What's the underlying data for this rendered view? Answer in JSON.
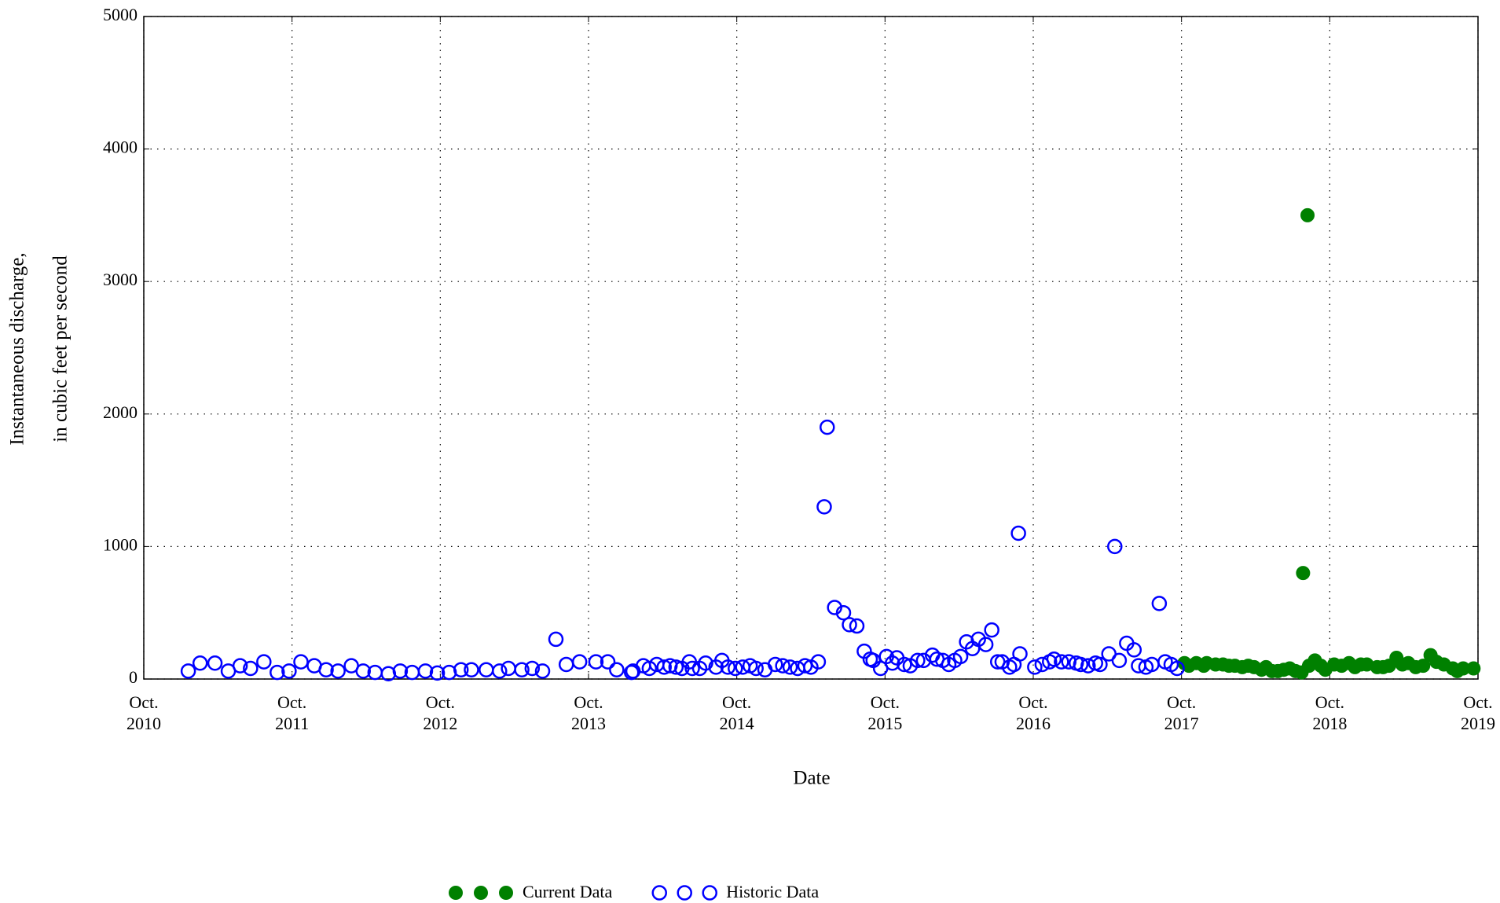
{
  "chart_data": {
    "type": "scatter",
    "x_label": "Date",
    "y_label": [
      "Instantaneous discharge,",
      "in cubic feet per second"
    ],
    "xlim": [
      2010.75,
      2019.75
    ],
    "xticks": [
      {
        "value": 2010.75,
        "label": "Oct. 2010"
      },
      {
        "value": 2011.75,
        "label": "Oct. 2011"
      },
      {
        "value": 2012.75,
        "label": "Oct. 2012"
      },
      {
        "value": 2013.75,
        "label": "Oct. 2013"
      },
      {
        "value": 2014.75,
        "label": "Oct. 2014"
      },
      {
        "value": 2015.75,
        "label": "Oct. 2015"
      },
      {
        "value": 2016.75,
        "label": "Oct. 2016"
      },
      {
        "value": 2017.75,
        "label": "Oct. 2017"
      },
      {
        "value": 2018.75,
        "label": "Oct. 2018"
      },
      {
        "value": 2019.75,
        "label": "Oct. 2019"
      }
    ],
    "ylim": [
      0,
      5000
    ],
    "yticks": [
      0,
      1000,
      2000,
      3000,
      4000,
      5000
    ],
    "grid": true,
    "legend": "bottom",
    "series": [
      {
        "name": "Current Data",
        "color": "#008000",
        "filled": true,
        "x": [
          2017.77,
          2017.8,
          2017.85,
          2017.9,
          2017.92,
          2017.98,
          2018.03,
          2018.07,
          2018.11,
          2018.16,
          2018.2,
          2018.24,
          2018.29,
          2018.32,
          2018.36,
          2018.4,
          2018.44,
          2018.48,
          2018.52,
          2018.56,
          2018.57,
          2018.6,
          2018.61,
          2018.65,
          2018.69,
          2018.72,
          2018.78,
          2018.83,
          2018.88,
          2018.92,
          2018.96,
          2019.0,
          2019.07,
          2019.11,
          2019.15,
          2019.2,
          2019.24,
          2019.28,
          2019.33,
          2019.38,
          2019.43,
          2019.47,
          2019.52,
          2019.58,
          2019.61,
          2019.65,
          2019.72
        ],
        "values": [
          120,
          100,
          120,
          100,
          120,
          110,
          110,
          100,
          100,
          90,
          100,
          90,
          70,
          90,
          60,
          60,
          70,
          80,
          60,
          50,
          800,
          3500,
          100,
          140,
          100,
          70,
          110,
          100,
          120,
          90,
          110,
          110,
          90,
          90,
          100,
          160,
          110,
          120,
          90,
          100,
          180,
          130,
          110,
          80,
          60,
          80,
          80
        ]
      },
      {
        "name": "Historic Data",
        "color": "#0000ff",
        "filled": false,
        "x": [
          2011.05,
          2011.13,
          2011.23,
          2011.32,
          2011.4,
          2011.47,
          2011.56,
          2011.65,
          2011.73,
          2011.81,
          2011.9,
          2011.98,
          2012.06,
          2012.15,
          2012.23,
          2012.31,
          2012.4,
          2012.48,
          2012.56,
          2012.65,
          2012.73,
          2012.81,
          2012.89,
          2012.96,
          2013.06,
          2013.15,
          2013.21,
          2013.3,
          2013.37,
          2013.44,
          2013.53,
          2013.6,
          2013.69,
          2013.8,
          2013.88,
          2013.94,
          2014.04,
          2014.05,
          2014.12,
          2014.16,
          2014.21,
          2014.26,
          2014.3,
          2014.34,
          2014.38,
          2014.43,
          2014.45,
          2014.5,
          2014.54,
          2014.61,
          2014.65,
          2014.69,
          2014.74,
          2014.79,
          2014.84,
          2014.88,
          2014.94,
          2015.01,
          2015.06,
          2015.11,
          2015.16,
          2015.21,
          2015.25,
          2015.3,
          2015.34,
          2015.36,
          2015.41,
          2015.47,
          2015.51,
          2015.56,
          2015.61,
          2015.65,
          2015.67,
          2015.72,
          2015.76,
          2015.8,
          2015.83,
          2015.88,
          2015.92,
          2015.97,
          2016.01,
          2016.07,
          2016.1,
          2016.14,
          2016.18,
          2016.22,
          2016.26,
          2016.3,
          2016.34,
          2016.38,
          2016.43,
          2016.47,
          2016.51,
          2016.54,
          2016.59,
          2016.62,
          2016.66,
          2016.65,
          2016.76,
          2016.81,
          2016.86,
          2016.89,
          2016.94,
          2016.99,
          2017.04,
          2017.07,
          2017.12,
          2017.17,
          2017.2,
          2017.26,
          2017.3,
          2017.33,
          2017.38,
          2017.43,
          2017.46,
          2017.51,
          2017.55,
          2017.6,
          2017.64,
          2017.68,
          2017.72
        ],
        "values": [
          60,
          120,
          120,
          60,
          100,
          80,
          130,
          50,
          60,
          130,
          100,
          70,
          60,
          100,
          60,
          50,
          40,
          60,
          50,
          60,
          45,
          50,
          70,
          70,
          70,
          60,
          80,
          70,
          80,
          60,
          300,
          110,
          130,
          130,
          130,
          70,
          50,
          60,
          100,
          80,
          110,
          90,
          100,
          90,
          80,
          130,
          80,
          80,
          120,
          90,
          140,
          90,
          80,
          90,
          100,
          80,
          70,
          110,
          100,
          90,
          80,
          100,
          90,
          130,
          1300,
          1900,
          540,
          500,
          410,
          400,
          210,
          150,
          140,
          80,
          170,
          120,
          160,
          110,
          100,
          140,
          140,
          180,
          150,
          140,
          110,
          140,
          170,
          280,
          230,
          300,
          260,
          370,
          130,
          130,
          90,
          110,
          190,
          1100,
          90,
          110,
          130,
          150,
          130,
          130,
          120,
          110,
          100,
          120,
          110,
          190,
          1000,
          140,
          270,
          220,
          100,
          90,
          110,
          570,
          130,
          110,
          80
        ]
      }
    ]
  }
}
